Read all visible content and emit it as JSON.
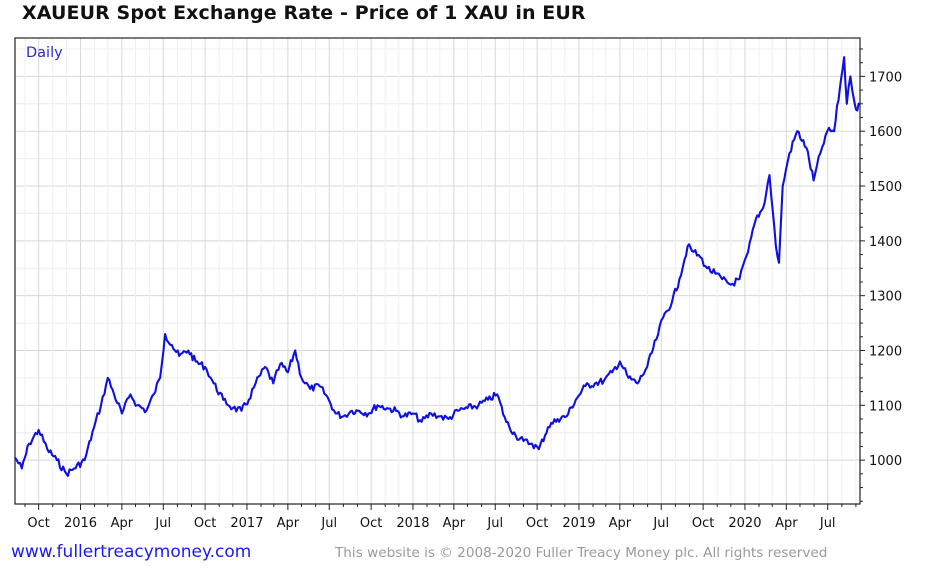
{
  "chart_data": {
    "type": "line",
    "title": "XAUEUR Spot Exchange Rate - Price of 1 XAU in EUR",
    "frequency_label": "Daily",
    "xlabel": "",
    "ylabel": "",
    "ylim": [
      920,
      1770
    ],
    "yticks": [
      1000,
      1100,
      1200,
      1300,
      1400,
      1500,
      1600,
      1700
    ],
    "x_range": [
      "2015-08-10",
      "2020-09-10"
    ],
    "x_ticks": [
      {
        "date": "2015-10-01",
        "label": "Oct"
      },
      {
        "date": "2016-01-01",
        "label": "2016"
      },
      {
        "date": "2016-04-01",
        "label": "Apr"
      },
      {
        "date": "2016-07-01",
        "label": "Jul"
      },
      {
        "date": "2016-10-01",
        "label": "Oct"
      },
      {
        "date": "2017-01-01",
        "label": "2017"
      },
      {
        "date": "2017-04-01",
        "label": "Apr"
      },
      {
        "date": "2017-07-01",
        "label": "Jul"
      },
      {
        "date": "2017-10-01",
        "label": "Oct"
      },
      {
        "date": "2018-01-01",
        "label": "2018"
      },
      {
        "date": "2018-04-01",
        "label": "Apr"
      },
      {
        "date": "2018-07-01",
        "label": "Jul"
      },
      {
        "date": "2018-10-01",
        "label": "Oct"
      },
      {
        "date": "2019-01-01",
        "label": "2019"
      },
      {
        "date": "2019-04-01",
        "label": "Apr"
      },
      {
        "date": "2019-07-01",
        "label": "Jul"
      },
      {
        "date": "2019-10-01",
        "label": "Oct"
      },
      {
        "date": "2020-01-01",
        "label": "2020"
      },
      {
        "date": "2020-04-01",
        "label": "Apr"
      },
      {
        "date": "2020-07-01",
        "label": "Jul"
      }
    ],
    "grid": true,
    "line_color": "#1010dd",
    "series": [
      {
        "x": [
          "2015-08-10",
          "2015-08-25",
          "2015-09-10",
          "2015-10-01",
          "2015-10-20",
          "2015-11-10",
          "2015-12-01",
          "2015-12-18",
          "2016-01-10",
          "2016-01-31",
          "2016-02-15",
          "2016-03-01",
          "2016-03-15",
          "2016-04-01",
          "2016-04-20",
          "2016-05-05",
          "2016-05-25",
          "2016-06-10",
          "2016-06-24",
          "2016-07-05",
          "2016-07-20",
          "2016-08-05",
          "2016-08-25",
          "2016-09-10",
          "2016-10-01",
          "2016-10-20",
          "2016-11-10",
          "2016-12-01",
          "2016-12-20",
          "2017-01-05",
          "2017-01-20",
          "2017-02-10",
          "2017-02-28",
          "2017-03-15",
          "2017-04-01",
          "2017-04-17",
          "2017-05-01",
          "2017-05-20",
          "2017-06-10",
          "2017-06-30",
          "2017-07-15",
          "2017-08-01",
          "2017-08-20",
          "2017-09-05",
          "2017-09-25",
          "2017-10-15",
          "2017-11-05",
          "2017-11-25",
          "2017-12-12",
          "2018-01-01",
          "2018-01-20",
          "2018-02-10",
          "2018-03-01",
          "2018-03-20",
          "2018-04-10",
          "2018-05-01",
          "2018-05-25",
          "2018-06-15",
          "2018-07-05",
          "2018-07-25",
          "2018-08-15",
          "2018-09-01",
          "2018-09-20",
          "2018-10-05",
          "2018-10-25",
          "2018-11-15",
          "2018-12-05",
          "2018-12-25",
          "2019-01-15",
          "2019-02-05",
          "2019-02-25",
          "2019-03-15",
          "2019-04-01",
          "2019-04-20",
          "2019-05-10",
          "2019-05-31",
          "2019-06-20",
          "2019-07-05",
          "2019-07-25",
          "2019-08-10",
          "2019-08-28",
          "2019-09-10",
          "2019-09-25",
          "2019-10-10",
          "2019-10-28",
          "2019-11-12",
          "2019-12-01",
          "2019-12-20",
          "2020-01-08",
          "2020-01-25",
          "2020-02-10",
          "2020-02-24",
          "2020-03-09",
          "2020-03-16",
          "2020-03-24",
          "2020-04-08",
          "2020-04-25",
          "2020-05-15",
          "2020-05-31",
          "2020-06-15",
          "2020-06-30",
          "2020-07-15",
          "2020-07-28",
          "2020-08-06",
          "2020-08-12",
          "2020-08-20",
          "2020-09-01",
          "2020-09-10"
        ],
        "values": [
          1005,
          985,
          1030,
          1055,
          1020,
          1000,
          975,
          985,
          1000,
          1060,
          1100,
          1150,
          1120,
          1085,
          1120,
          1100,
          1090,
          1120,
          1150,
          1230,
          1210,
          1190,
          1200,
          1180,
          1170,
          1140,
          1110,
          1095,
          1090,
          1110,
          1140,
          1170,
          1140,
          1175,
          1160,
          1200,
          1150,
          1130,
          1135,
          1110,
          1085,
          1080,
          1090,
          1090,
          1085,
          1100,
          1095,
          1090,
          1080,
          1085,
          1070,
          1085,
          1080,
          1075,
          1090,
          1095,
          1100,
          1110,
          1120,
          1070,
          1045,
          1035,
          1030,
          1020,
          1060,
          1075,
          1080,
          1110,
          1135,
          1140,
          1145,
          1160,
          1180,
          1150,
          1140,
          1170,
          1220,
          1260,
          1290,
          1330,
          1390,
          1380,
          1370,
          1350,
          1340,
          1330,
          1320,
          1330,
          1380,
          1440,
          1460,
          1520,
          1390,
          1360,
          1500,
          1560,
          1600,
          1570,
          1510,
          1560,
          1600,
          1600,
          1680,
          1735,
          1650,
          1700,
          1640,
          1650
        ]
      }
    ]
  },
  "footer": {
    "site": "www.fullertreacymoney.com",
    "copyright": "This website is © 2008-2020 Fuller Treacy Money plc. All rights reserved"
  }
}
